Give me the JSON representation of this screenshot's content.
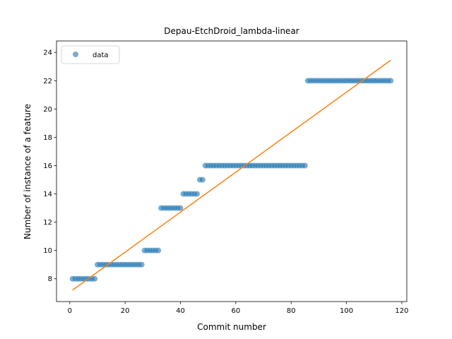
{
  "chart_data": {
    "type": "scatter",
    "title": "Depau-EtchDroid_lambda-linear",
    "xlabel": "Commit number",
    "ylabel": "Number of instance of a feature",
    "xlim": [
      -4.8,
      121.8
    ],
    "ylim": [
      6.39,
      24.81
    ],
    "xticks": [
      0,
      20,
      40,
      60,
      80,
      100,
      120
    ],
    "yticks": [
      8,
      10,
      12,
      14,
      16,
      18,
      20,
      22,
      24
    ],
    "grid": false,
    "legend": {
      "placement": "top-left",
      "entries": [
        "data"
      ]
    },
    "series": [
      {
        "name": "data",
        "kind": "scatter",
        "color": "#1f77b4",
        "segments": [
          {
            "x_start": 1,
            "x_end": 9,
            "y": 8
          },
          {
            "x_start": 10,
            "x_end": 26,
            "y": 9
          },
          {
            "x_start": 27,
            "x_end": 32,
            "y": 10
          },
          {
            "x_start": 33,
            "x_end": 40,
            "y": 13
          },
          {
            "x_start": 41,
            "x_end": 46,
            "y": 14
          },
          {
            "x_start": 47,
            "x_end": 48,
            "y": 15
          },
          {
            "x_start": 49,
            "x_end": 85,
            "y": 16
          },
          {
            "x_start": 86,
            "x_end": 116,
            "y": 22
          }
        ]
      },
      {
        "kind": "line",
        "color": "#ff7f0e",
        "x": [
          1,
          116
        ],
        "y": [
          7.2,
          23.45
        ]
      }
    ]
  }
}
